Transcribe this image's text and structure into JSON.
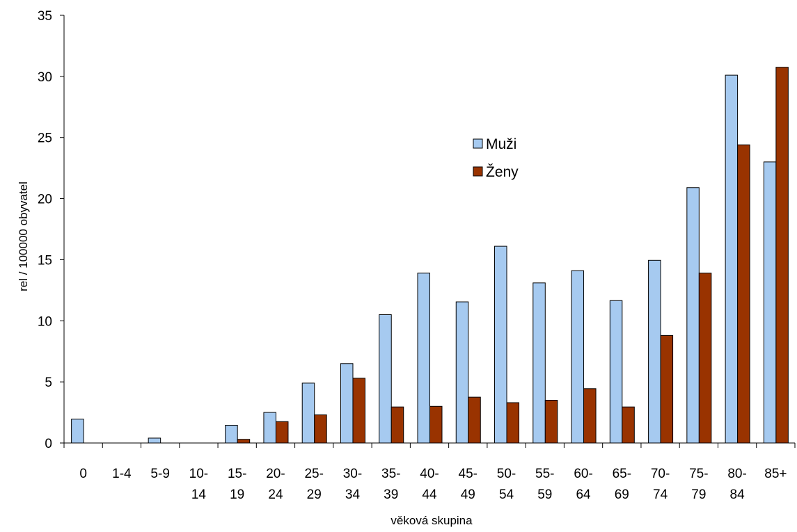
{
  "chart_data": {
    "type": "bar",
    "title": "",
    "xlabel": "věková skupina",
    "ylabel": "rel / 100000 obyvatel",
    "ylim": [
      0,
      35
    ],
    "yticks": [
      "0",
      "5",
      "10",
      "15",
      "20",
      "25",
      "30",
      "35"
    ],
    "grid": false,
    "legend_position": "center-right",
    "categories": [
      [
        "0"
      ],
      [
        "1-4"
      ],
      [
        "5-9"
      ],
      [
        "10-",
        "14"
      ],
      [
        "15-",
        "19"
      ],
      [
        "20-",
        "24"
      ],
      [
        "25-",
        "29"
      ],
      [
        "30-",
        "34"
      ],
      [
        "35-",
        "39"
      ],
      [
        "40-",
        "44"
      ],
      [
        "45-",
        "49"
      ],
      [
        "50-",
        "54"
      ],
      [
        "55-",
        "59"
      ],
      [
        "60-",
        "64"
      ],
      [
        "65-",
        "69"
      ],
      [
        "70-",
        "74"
      ],
      [
        "75-",
        "79"
      ],
      [
        "80-",
        "84"
      ],
      [
        "85+"
      ]
    ],
    "series": [
      {
        "name": "Muži",
        "color": "#a6caf0",
        "values": [
          1.95,
          0,
          0.4,
          0,
          1.45,
          2.5,
          4.9,
          6.5,
          10.5,
          13.9,
          11.55,
          16.1,
          13.1,
          14.1,
          11.65,
          14.95,
          20.9,
          30.1,
          23.0
        ]
      },
      {
        "name": "Ženy",
        "color": "#993300",
        "values": [
          0,
          0,
          0,
          0,
          0.3,
          1.75,
          2.3,
          5.3,
          2.95,
          3.0,
          3.75,
          3.3,
          3.5,
          4.45,
          2.95,
          8.8,
          13.9,
          24.4,
          30.75
        ]
      }
    ]
  }
}
